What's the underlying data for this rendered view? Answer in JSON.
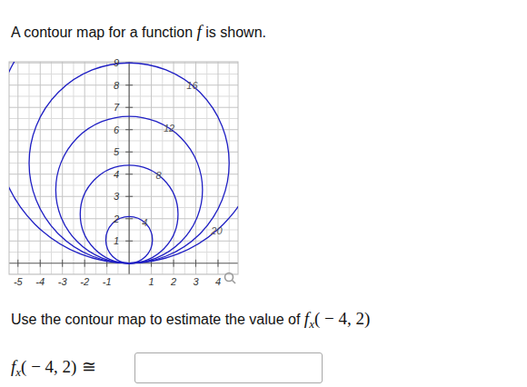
{
  "intro": [
    "A contour map for a function ",
    "f",
    " is shown."
  ],
  "question": "Use the contour map to estimate the value of ",
  "expression": {
    "name": "f",
    "subscript": "x",
    "args": "( − 4, 2)"
  },
  "approx": "≅",
  "chart_data": {
    "type": "contour",
    "xlim": [
      -5.4,
      4.9
    ],
    "ylim": [
      -0.5,
      9.05
    ],
    "xticks": [
      -5,
      -4,
      -3,
      -2,
      -1,
      1,
      2,
      3,
      4
    ],
    "yticks": [
      1,
      2,
      3,
      4,
      5,
      6,
      7,
      8,
      9
    ],
    "grid": true,
    "color": "#1f1fc4",
    "contours": [
      {
        "level": 4,
        "cx": 0,
        "cy": 1.05,
        "r": 1.05
      },
      {
        "level": 8,
        "cx": 0,
        "cy": 2.2,
        "r": 2.2
      },
      {
        "level": 12,
        "cx": 0,
        "cy": 3.3,
        "r": 3.3
      },
      {
        "level": 16,
        "cx": 0,
        "cy": 4.5,
        "r": 4.5
      },
      {
        "level": 20,
        "cx": 0,
        "cy": 6.0,
        "r": 6.0
      }
    ]
  }
}
